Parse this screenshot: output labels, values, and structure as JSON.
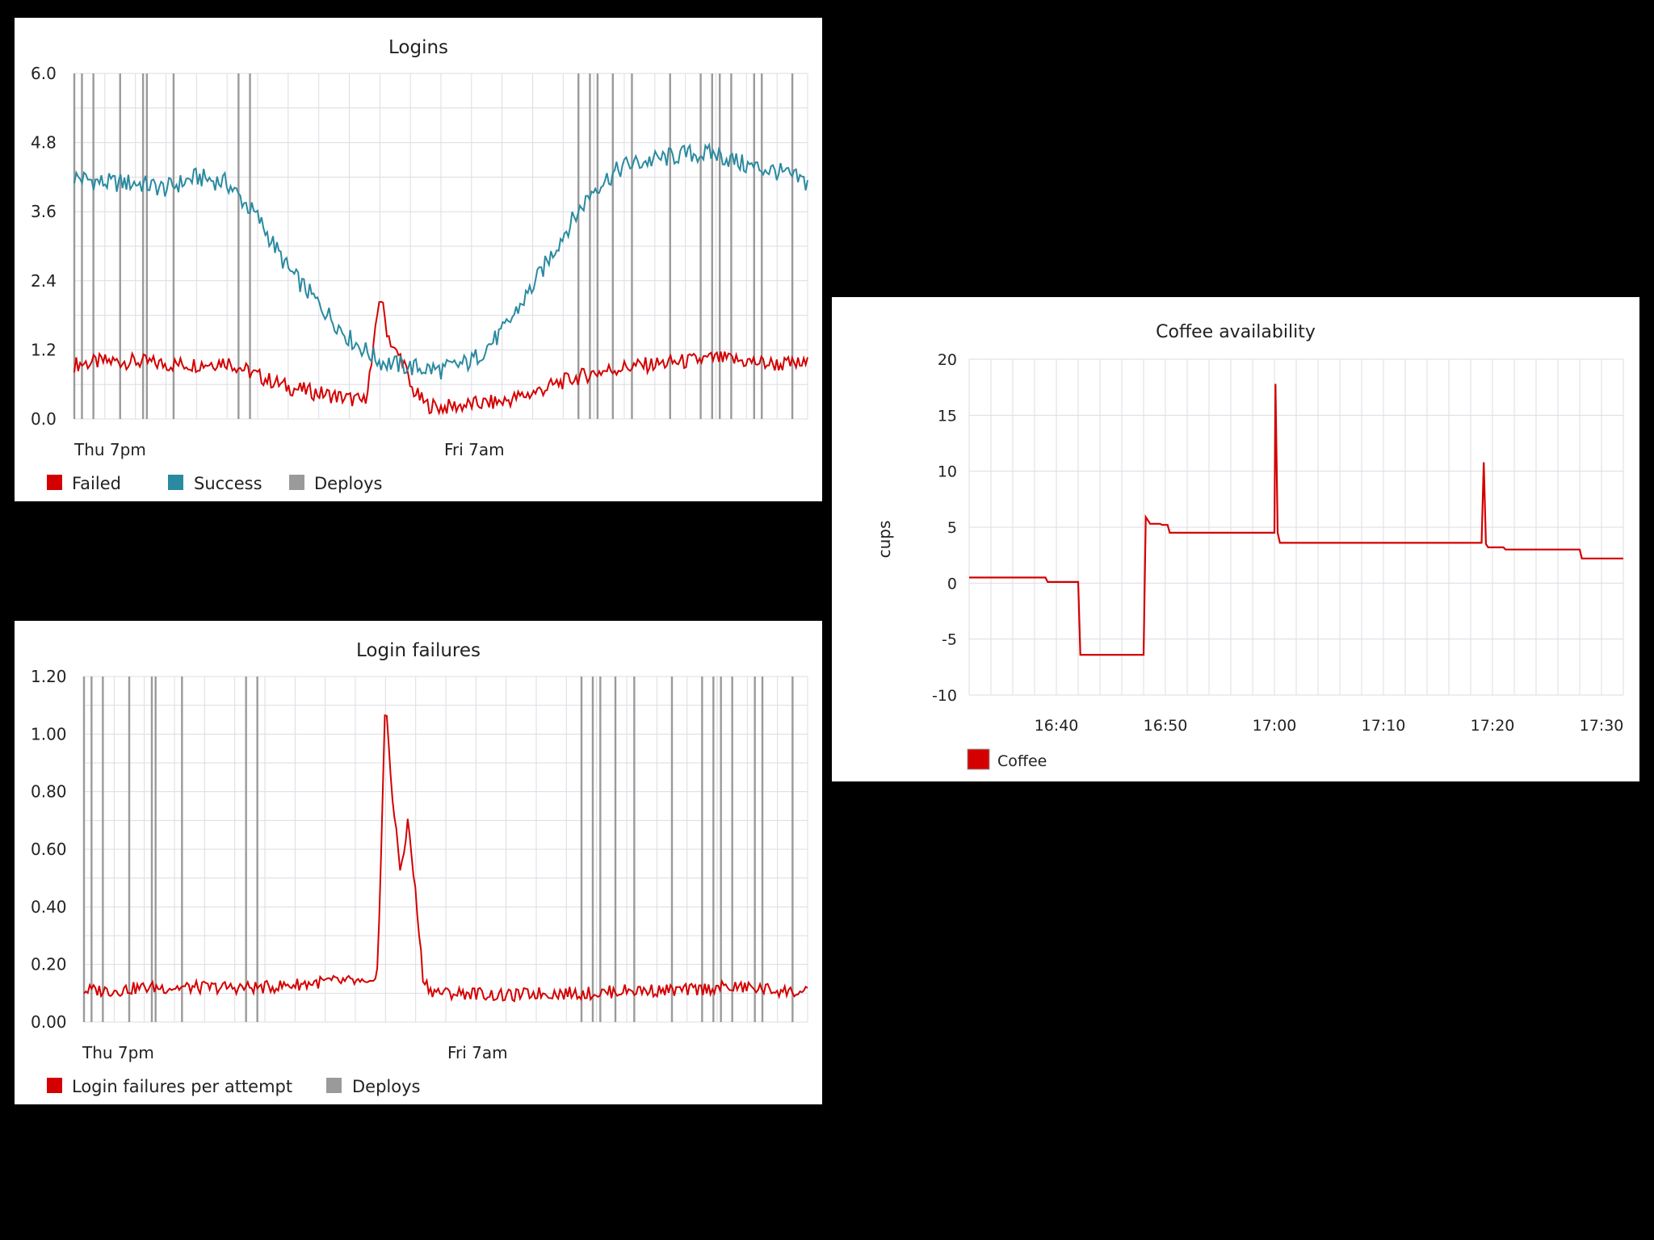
{
  "colors": {
    "failed": "#d40000",
    "success": "#2a8aa0",
    "deploys": "#9a9a9a",
    "coffee": "#d40000",
    "background": "#000000",
    "grid": "#dcdce4"
  },
  "chart_data": [
    {
      "type": "line",
      "title": "Logins",
      "xlabel": "",
      "ylabel": "",
      "ylim": [
        0,
        6
      ],
      "yticks": [
        "0.0",
        "1.2",
        "2.4",
        "3.6",
        "4.8",
        "6.0"
      ],
      "x_tick_labels": [
        "Thu  7pm",
        "Fri  7am"
      ],
      "grid": true,
      "legend_position": "bottom-left",
      "series": [
        {
          "name": "Failed",
          "x": [
            0,
            4,
            8,
            12,
            16,
            20,
            24,
            28,
            32,
            36,
            38,
            39,
            40,
            41,
            42,
            43,
            44,
            46,
            48,
            52,
            56,
            60,
            64,
            68,
            72,
            76,
            80,
            84,
            88,
            92,
            96
          ],
          "y": [
            0.95,
            1.0,
            1.0,
            0.95,
            0.95,
            1.0,
            0.75,
            0.55,
            0.45,
            0.35,
            0.3,
            1.0,
            2.2,
            1.5,
            1.15,
            1.05,
            0.55,
            0.25,
            0.2,
            0.25,
            0.3,
            0.45,
            0.65,
            0.8,
            0.9,
            0.95,
            1.0,
            1.05,
            1.0,
            0.95,
            0.95
          ]
        },
        {
          "name": "Success",
          "x": [
            0,
            4,
            8,
            12,
            16,
            20,
            24,
            28,
            32,
            36,
            40,
            44,
            48,
            52,
            56,
            60,
            64,
            68,
            72,
            76,
            80,
            84,
            88,
            92,
            96
          ],
          "y": [
            4.2,
            4.1,
            4.1,
            4.0,
            4.2,
            4.1,
            3.5,
            2.6,
            2.0,
            1.4,
            1.0,
            0.9,
            0.85,
            1.0,
            1.5,
            2.3,
            3.2,
            4.0,
            4.4,
            4.5,
            4.6,
            4.6,
            4.4,
            4.3,
            4.1
          ]
        },
        {
          "name": "Deploys",
          "x": [
            0,
            1,
            2.5,
            6,
            9,
            9.5,
            13,
            21.5,
            23,
            66,
            67.5,
            68.5,
            70.5,
            73,
            78,
            82,
            83.5,
            84.5,
            86,
            89,
            90,
            94
          ]
        }
      ]
    },
    {
      "type": "line",
      "title": "Login failures",
      "xlabel": "",
      "ylabel": "",
      "ylim": [
        0,
        1.2
      ],
      "yticks": [
        "0.00",
        "0.20",
        "0.40",
        "0.60",
        "0.80",
        "1.00",
        "1.20"
      ],
      "x_tick_labels": [
        "Thu  7pm",
        "Fri  7am"
      ],
      "grid": true,
      "legend_position": "bottom-left",
      "series": [
        {
          "name": "Login failures per attempt",
          "x": [
            0,
            4,
            8,
            12,
            16,
            20,
            24,
            28,
            32,
            36,
            38,
            39,
            40,
            41,
            42,
            43,
            44,
            45,
            46,
            48,
            52,
            56,
            60,
            64,
            68,
            72,
            76,
            80,
            84,
            88,
            92,
            96
          ],
          "y": [
            0.11,
            0.11,
            0.12,
            0.12,
            0.12,
            0.12,
            0.12,
            0.13,
            0.14,
            0.14,
            0.12,
            0.2,
            1.13,
            0.75,
            0.52,
            0.7,
            0.44,
            0.15,
            0.11,
            0.1,
            0.1,
            0.09,
            0.1,
            0.1,
            0.1,
            0.11,
            0.11,
            0.11,
            0.12,
            0.12,
            0.11,
            0.1
          ]
        },
        {
          "name": "Deploys",
          "x": [
            0,
            1,
            2.5,
            6,
            9,
            9.5,
            13,
            21.5,
            23,
            66,
            67.5,
            68.5,
            70.5,
            73,
            78,
            82,
            83.5,
            84.5,
            86,
            89,
            90,
            94
          ]
        }
      ]
    },
    {
      "type": "line",
      "title": "Coffee availability",
      "xlabel": "",
      "ylabel": "cups",
      "ylim": [
        -10,
        20
      ],
      "yticks": [
        "-10",
        "-5",
        "0",
        "5",
        "10",
        "15",
        "20"
      ],
      "xlim": [
        2012,
        2072
      ],
      "xticks": [
        2020,
        2030,
        2040,
        2050,
        2060,
        2070
      ],
      "x_tick_labels": [
        "16:40",
        "16:50",
        "17:00",
        "17:10",
        "17:20",
        "17:30"
      ],
      "grid": true,
      "legend_position": "bottom-left",
      "series": [
        {
          "name": "Coffee",
          "x": [
            2012,
            2019,
            2019.2,
            2022,
            2022.2,
            2028,
            2028.2,
            2028.6,
            2029.5,
            2029.7,
            2030.2,
            2030.4,
            2040,
            2040.1,
            2040.3,
            2040.5,
            2059,
            2059.2,
            2059.4,
            2059.6,
            2061,
            2061.2,
            2068,
            2068.2,
            2072
          ],
          "y": [
            0.5,
            0.5,
            0.1,
            0.1,
            -6.4,
            -6.4,
            5.9,
            5.3,
            5.3,
            5.2,
            5.2,
            4.5,
            4.5,
            17.8,
            4.5,
            3.6,
            3.6,
            10.8,
            3.5,
            3.2,
            3.2,
            3.0,
            3.0,
            2.2,
            2.2
          ]
        }
      ]
    }
  ]
}
